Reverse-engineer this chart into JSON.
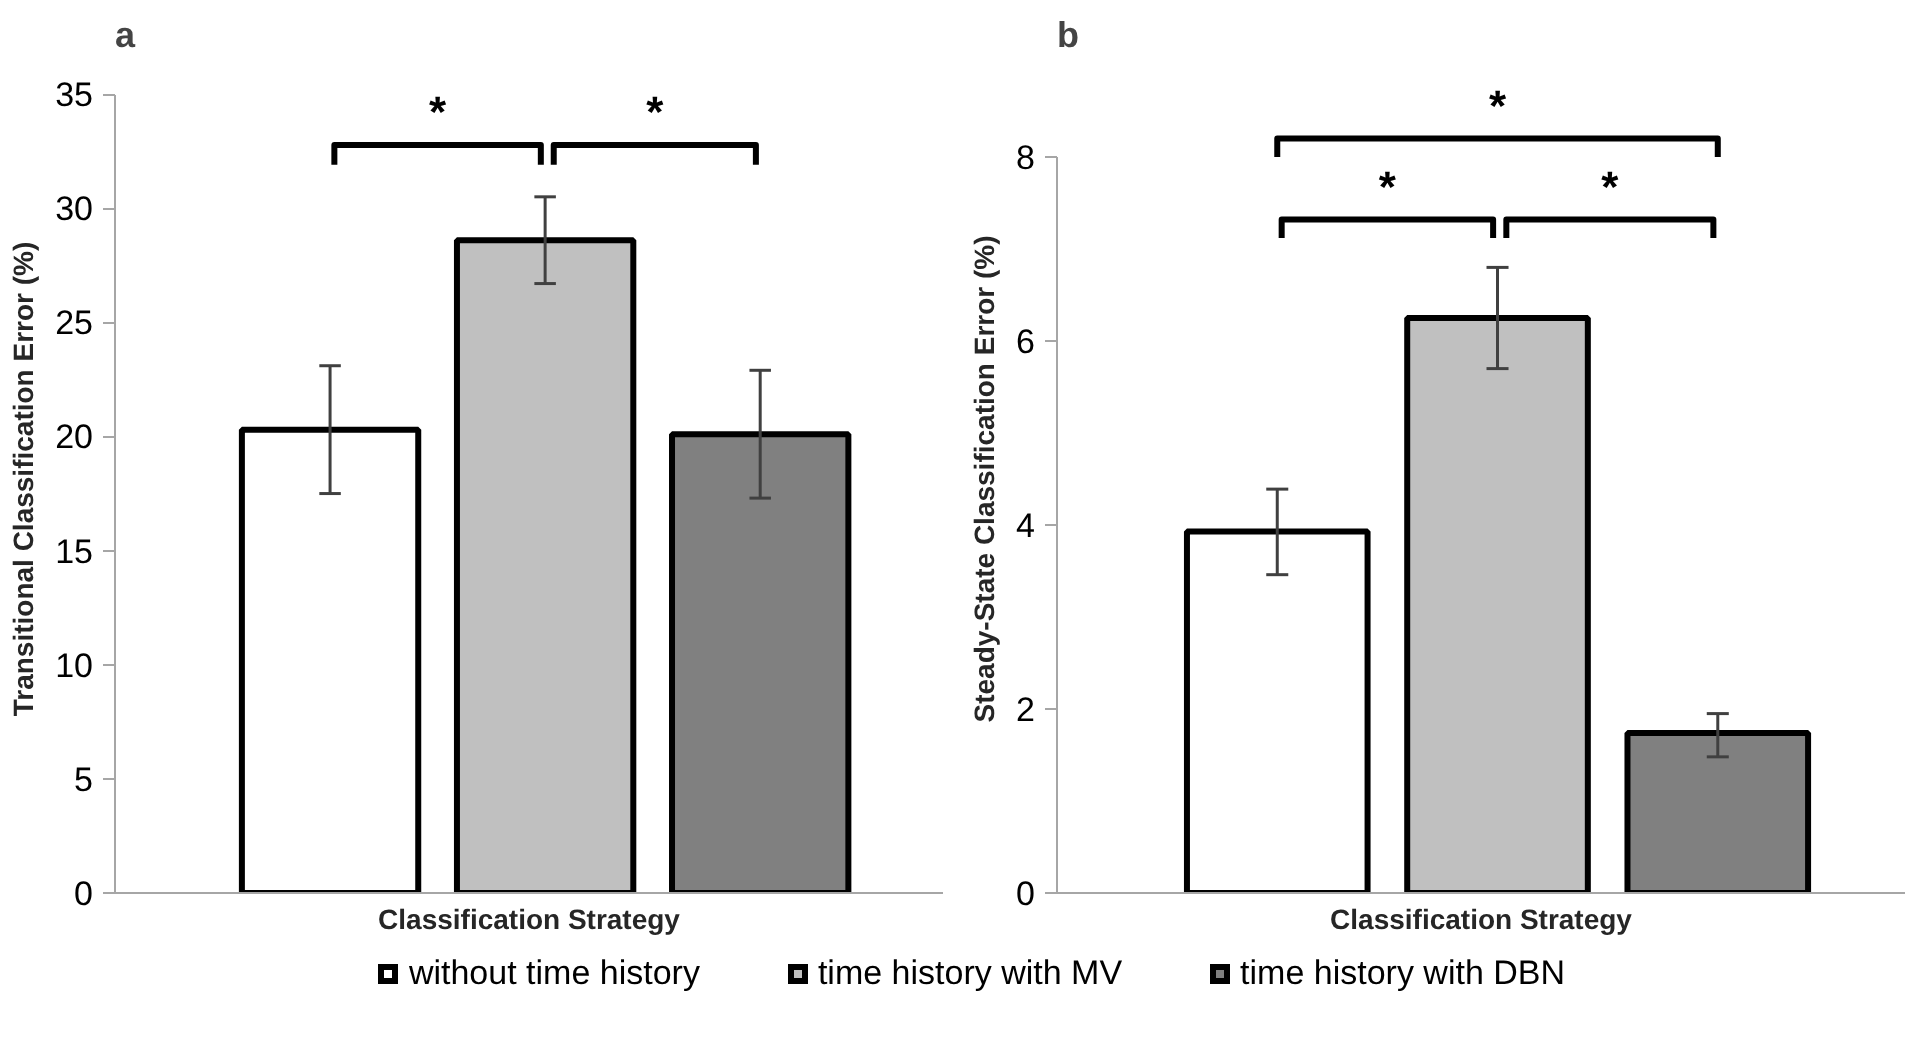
{
  "chart_data": [
    {
      "type": "bar",
      "title": "a",
      "ylabel": "Transitional Classification Error (%)",
      "xlabel": "Classification Strategy",
      "categories": [
        null,
        null,
        null
      ],
      "stacked": true,
      "ylim": [
        0,
        35
      ],
      "yticks": [
        0,
        5,
        10,
        15,
        20,
        25,
        30,
        35
      ],
      "grid": false,
      "legend": "bottom",
      "annotations": [
        "*",
        "*"
      ],
      "series": [
        {
          "name": "without time history",
          "color": "#ffffff",
          "values": [
            20.3,
            null,
            null
          ],
          "errors": [
            [
              17.5,
              23.1
            ],
            null,
            null
          ]
        },
        {
          "name": "time history with MV",
          "color": "#c0c0c0",
          "values": [
            null,
            28.6,
            null
          ],
          "errors": [
            null,
            [
              26.7,
              30.5
            ],
            null
          ]
        },
        {
          "name": "time history with DBN",
          "color": "#808080",
          "values": [
            null,
            null,
            20.1
          ],
          "errors": [
            null,
            null,
            [
              17.3,
              22.9
            ]
          ]
        }
      ]
    },
    {
      "type": "bar",
      "title": "b",
      "ylabel": "Steady-State Classification Error (%)",
      "xlabel": "Classification Strategy",
      "categories": [
        null,
        null,
        null
      ],
      "stacked": true,
      "ylim": [
        0,
        8
      ],
      "yticks": [
        0,
        2,
        4,
        6,
        8
      ],
      "grid": false,
      "legend": "bottom",
      "annotations": [
        "*",
        "*",
        "*"
      ],
      "series": [
        {
          "name": "without time history",
          "color": "#ffffff",
          "values": [
            3.93,
            null,
            null
          ],
          "errors": [
            [
              3.46,
              4.39
            ],
            null,
            null
          ]
        },
        {
          "name": "time history with MV",
          "color": "#c0c0c0",
          "values": [
            null,
            6.25,
            null
          ],
          "errors": [
            null,
            [
              5.7,
              6.8
            ],
            null
          ]
        },
        {
          "name": "time history with DBN",
          "color": "#808080",
          "values": [
            null,
            null,
            1.74
          ],
          "errors": [
            null,
            null,
            [
              1.48,
              1.95
            ]
          ]
        }
      ]
    }
  ]
}
